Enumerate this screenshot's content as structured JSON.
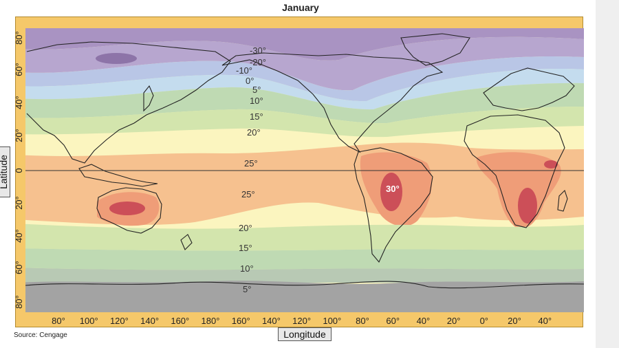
{
  "title": "January",
  "source": "Source: Cengage",
  "axes": {
    "latitude_label": "Latitude",
    "longitude_label": "Longitude",
    "lat_ticks": [
      "80°",
      "60°",
      "40°",
      "20°",
      "0",
      "20°",
      "40°",
      "60°",
      "80°"
    ],
    "lon_ticks": [
      "80°",
      "100°",
      "120°",
      "140°",
      "160°",
      "180°",
      "160°",
      "140°",
      "120°",
      "100°",
      "80°",
      "60°",
      "40°",
      "20°",
      "0°",
      "20°",
      "40°"
    ]
  },
  "isotherms": [
    "-30°",
    "-20°",
    "-10°",
    "0°",
    "5°",
    "10°",
    "15°",
    "20°",
    "25°",
    "25°",
    "30°",
    "20°",
    "15°",
    "10°",
    "5°"
  ],
  "colors": {
    "frame": "#f5c86a",
    "band_very_cold": "#a993c2",
    "band_cold": "#b7a6cf",
    "band_cool": "#b9c6e6",
    "band_light_blue": "#c4dcee",
    "band_green": "#bfdab3",
    "band_light_green": "#d3e5ad",
    "band_pale_yellow": "#fbf5bf",
    "band_orange": "#f6c18f",
    "band_warm": "#ef9d78",
    "band_hot": "#cc4f58",
    "antarctic": "#a3a3a3"
  }
}
